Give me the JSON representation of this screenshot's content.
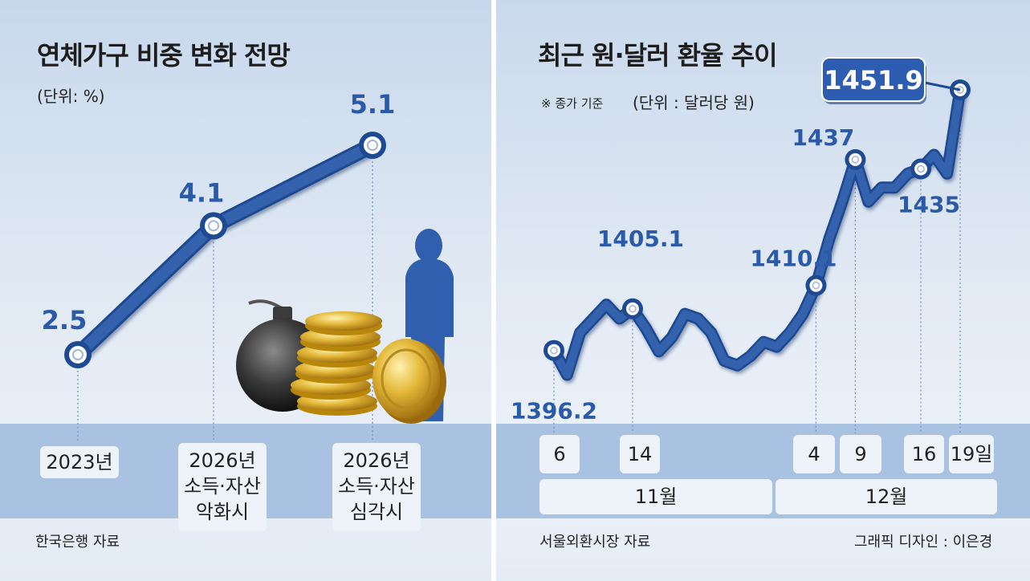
{
  "left": {
    "title": "연체가구 비중 변화 전망",
    "unit": "(단위: %)",
    "source": "한국은행 자료",
    "categories": [
      [
        "2023년"
      ],
      [
        "2026년",
        "소득·자산",
        "악화시"
      ],
      [
        "2026년",
        "소득·자산",
        "심각시"
      ]
    ]
  },
  "right": {
    "title": "최근 원·달러 환율 추이",
    "note": "※ 종가 기준",
    "unit": "(단위 : 달러당 원)",
    "source": "서울외환시장 자료",
    "credit": "그래픽 디자인 : 이은경",
    "day_ticks": [
      "6",
      "14",
      "4",
      "9",
      "16",
      "19일"
    ],
    "month_labels": [
      "11월",
      "12월"
    ]
  },
  "colors": {
    "line": "#3462ad",
    "line_dark": "#1e4a92",
    "label": "#2b5aa8",
    "callout": "#2d5db0"
  },
  "chart_data": [
    {
      "type": "line",
      "title": "연체가구 비중 변화 전망",
      "unit": "(단위: %)",
      "categories": [
        "2023년",
        "2026년 소득·자산 악화시",
        "2026년 소득·자산 심각시"
      ],
      "values": [
        2.5,
        4.1,
        5.1
      ],
      "value_labels": [
        "2.5",
        "4.1",
        "5.1"
      ]
    },
    {
      "type": "line",
      "title": "최근 원·달러 환율 추이",
      "unit": "(단위 : 달러당 원)",
      "x": [
        "11/6",
        "11/7",
        "11/8",
        "11/11",
        "11/12",
        "11/13",
        "11/14",
        "11/15",
        "11/18",
        "11/19",
        "11/20",
        "11/21",
        "11/22",
        "11/25",
        "11/26",
        "11/27",
        "11/28",
        "11/29",
        "12/2",
        "12/3",
        "12/4",
        "12/5",
        "12/6",
        "12/9",
        "12/10",
        "12/11",
        "12/12",
        "12/13",
        "12/16",
        "12/17",
        "12/18",
        "12/19"
      ],
      "values": [
        1396.2,
        1391,
        1400,
        1403,
        1406,
        1403,
        1405.1,
        1401,
        1396,
        1399,
        1404,
        1403,
        1400,
        1394,
        1393,
        1395,
        1398,
        1397,
        1400,
        1404,
        1410.1,
        1420,
        1428,
        1437,
        1428,
        1431,
        1431,
        1434,
        1435,
        1438,
        1434,
        1451.9
      ],
      "labeled_points": [
        {
          "x": "11/6",
          "label": "1396.2"
        },
        {
          "x": "11/14",
          "label": "1405.1"
        },
        {
          "x": "12/4",
          "label": "1410.1"
        },
        {
          "x": "12/9",
          "label": "1437"
        },
        {
          "x": "12/16",
          "label": "1435"
        },
        {
          "x": "12/19",
          "label": "1451.9"
        }
      ]
    }
  ]
}
